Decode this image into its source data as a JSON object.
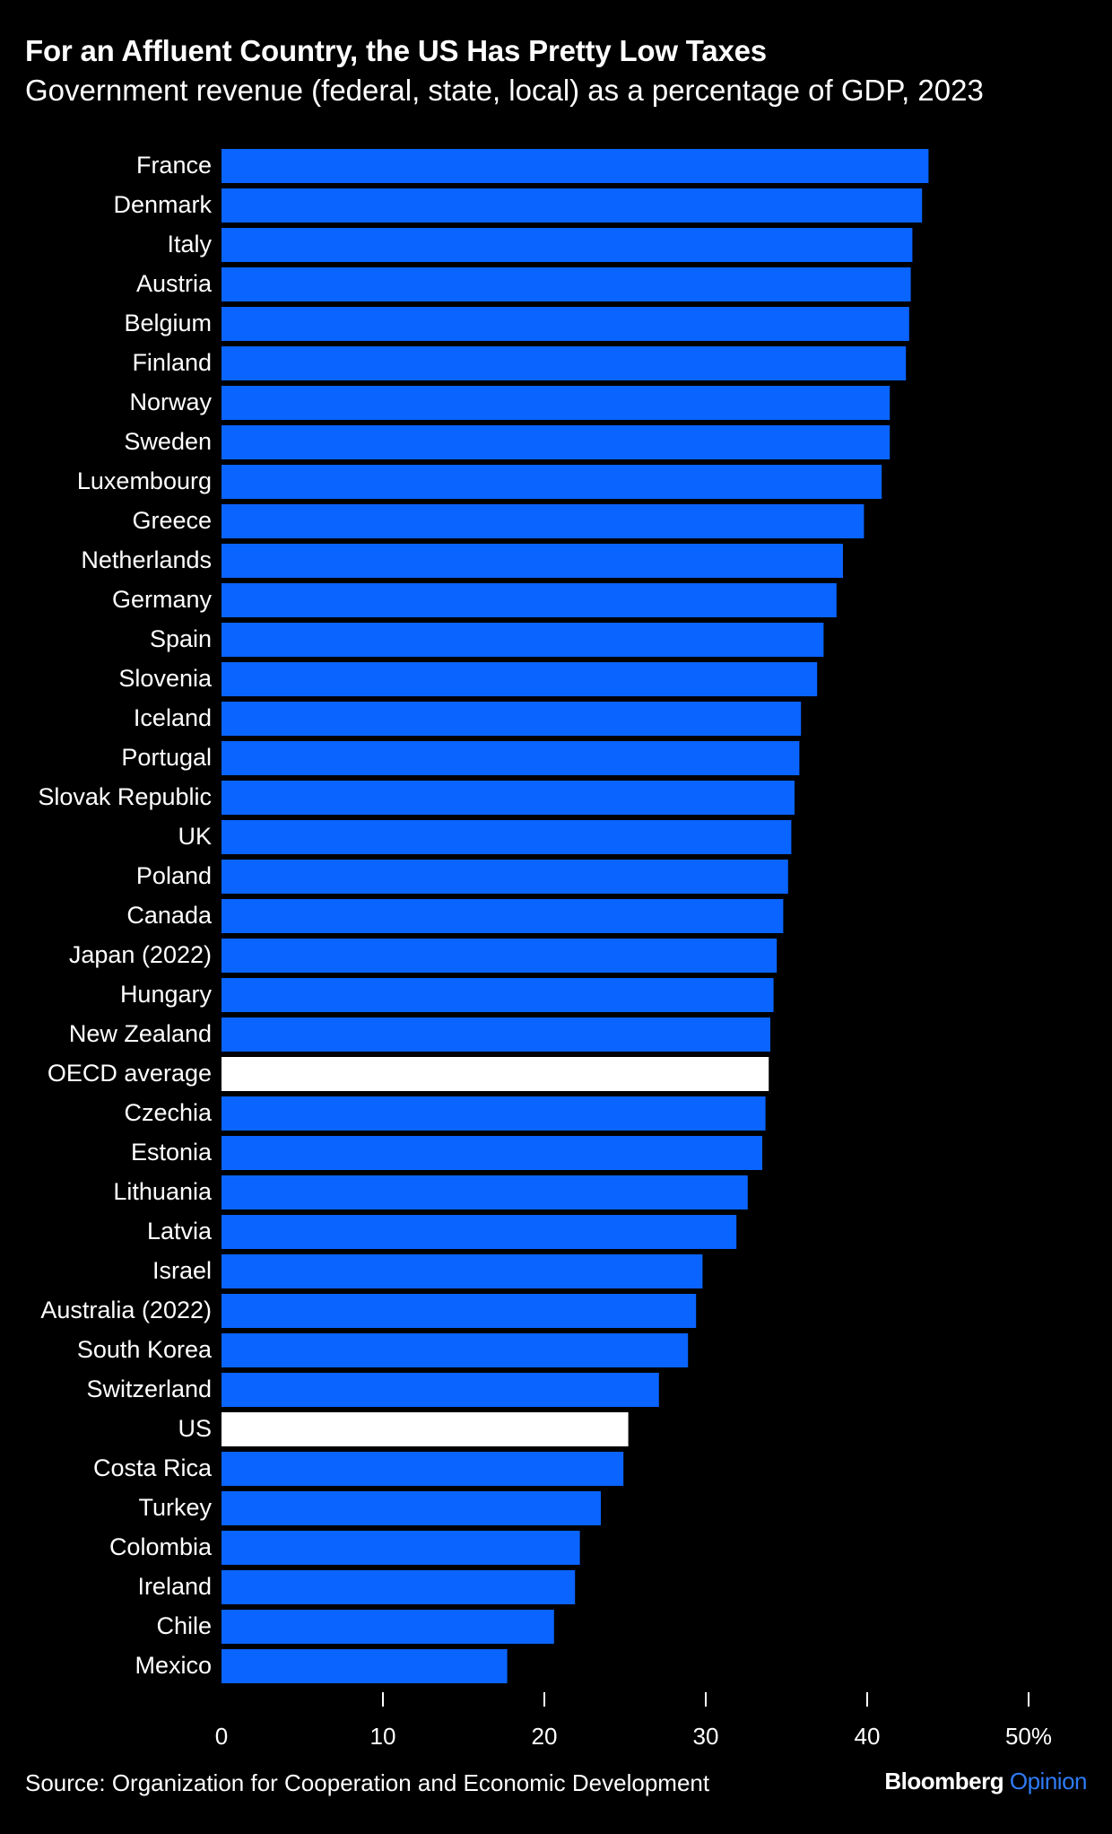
{
  "header": {
    "title": "For an Affluent Country, the US Has Pretty Low Taxes",
    "subtitle": "Government revenue (federal, state, local) as a percentage of GDP, 2023"
  },
  "footer": {
    "source": "Source: Organization for Cooperation and Economic Development",
    "brand_main": "Bloomberg",
    "brand_accent": "Opinion"
  },
  "colors": {
    "background": "#000000",
    "bar": "#0a64ff",
    "highlight": "#ffffff",
    "text": "#ffffff"
  },
  "chart_data": {
    "type": "bar",
    "orientation": "horizontal",
    "title": "For an Affluent Country, the US Has Pretty Low Taxes",
    "subtitle": "Government revenue (federal, state, local) as a percentage of GDP, 2023",
    "xlim": [
      0,
      50
    ],
    "xticks": [
      0,
      10,
      20,
      30,
      40,
      50
    ],
    "xtick_labels": [
      "0",
      "10",
      "20",
      "30",
      "40",
      "50%"
    ],
    "grid": false,
    "categories": [
      "France",
      "Denmark",
      "Italy",
      "Austria",
      "Belgium",
      "Finland",
      "Norway",
      "Sweden",
      "Luxembourg",
      "Greece",
      "Netherlands",
      "Germany",
      "Spain",
      "Slovenia",
      "Iceland",
      "Portugal",
      "Slovak Republic",
      "UK",
      "Poland",
      "Canada",
      "Japan (2022)",
      "Hungary",
      "New Zealand",
      "OECD average",
      "Czechia",
      "Estonia",
      "Lithuania",
      "Latvia",
      "Israel",
      "Australia (2022)",
      "South Korea",
      "Switzerland",
      "US",
      "Costa Rica",
      "Turkey",
      "Colombia",
      "Ireland",
      "Chile",
      "Mexico"
    ],
    "values": [
      43.8,
      43.4,
      42.8,
      42.7,
      42.6,
      42.4,
      41.4,
      41.4,
      40.9,
      39.8,
      38.5,
      38.1,
      37.3,
      36.9,
      35.9,
      35.8,
      35.5,
      35.3,
      35.1,
      34.8,
      34.4,
      34.2,
      34.0,
      33.9,
      33.7,
      33.5,
      32.6,
      31.9,
      29.8,
      29.4,
      28.9,
      27.1,
      25.2,
      24.9,
      23.5,
      22.2,
      21.9,
      20.6,
      17.7
    ],
    "highlighted": [
      "OECD average",
      "US"
    ]
  }
}
